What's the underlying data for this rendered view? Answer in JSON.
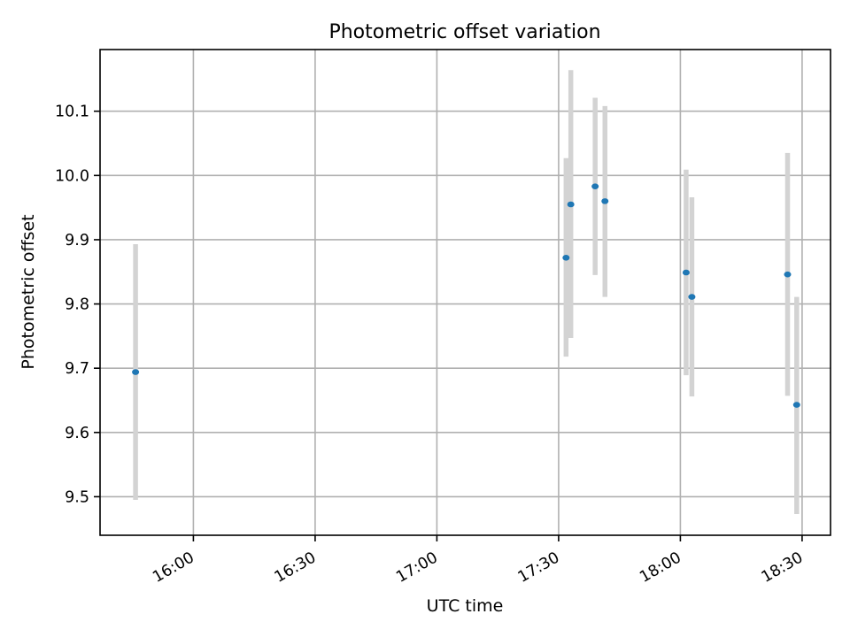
{
  "chart_data": {
    "type": "scatter",
    "title": "Photometric offset variation",
    "xlabel": "UTC time",
    "ylabel": "Photometric offset",
    "x_axis_type": "time",
    "xlim": [
      "15:37",
      "18:37"
    ],
    "ylim": [
      9.44,
      10.196
    ],
    "x_ticks": [
      "16:00",
      "16:30",
      "17:00",
      "17:30",
      "18:00",
      "18:30"
    ],
    "y_ticks": [
      9.5,
      9.6,
      9.7,
      9.8,
      9.9,
      10.0,
      10.1
    ],
    "y_tick_labels": [
      "9.5",
      "9.6",
      "9.7",
      "9.8",
      "9.9",
      "10.0",
      "10.1"
    ],
    "grid": true,
    "marker_color": "#1f77b4",
    "errorbar_color": "#d3d3d3",
    "series": [
      {
        "points": [
          {
            "x": "15:45:45",
            "y": 9.694,
            "ylow": 9.495,
            "yhigh": 9.893
          },
          {
            "x": "17:31:50",
            "y": 9.872,
            "ylow": 9.718,
            "yhigh": 10.027
          },
          {
            "x": "17:33:00",
            "y": 9.955,
            "ylow": 9.747,
            "yhigh": 10.164
          },
          {
            "x": "17:39:00",
            "y": 9.983,
            "ylow": 9.845,
            "yhigh": 10.121
          },
          {
            "x": "17:41:25",
            "y": 9.96,
            "ylow": 9.811,
            "yhigh": 10.108
          },
          {
            "x": "18:01:25",
            "y": 9.849,
            "ylow": 9.689,
            "yhigh": 10.009
          },
          {
            "x": "18:02:50",
            "y": 9.811,
            "ylow": 9.656,
            "yhigh": 9.966
          },
          {
            "x": "18:26:25",
            "y": 9.846,
            "ylow": 9.657,
            "yhigh": 10.035
          },
          {
            "x": "18:28:40",
            "y": 9.643,
            "ylow": 9.473,
            "yhigh": 9.811
          }
        ]
      }
    ]
  }
}
